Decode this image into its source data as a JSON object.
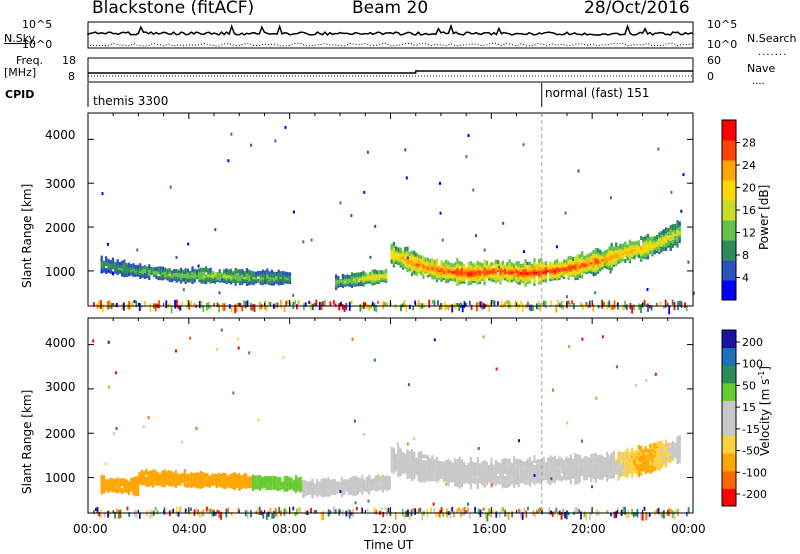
{
  "header": {
    "radar": "Blackstone (fitACF)",
    "beam": "Beam 20",
    "date": "28/Oct/2016"
  },
  "top_panels": {
    "nsky_label": "N.Sky",
    "nsearch_label": "N.Search",
    "freq_label": "Freq.",
    "freq_unit": "[MHz]",
    "nave_label": "Nave",
    "cpid_label": "CPID",
    "nsky_ticks": [
      "10^5",
      "10^0"
    ],
    "nsearch_ticks": [
      "10^5",
      "10^0"
    ],
    "freq_ticks": [
      "18",
      "8"
    ],
    "nave_ticks": [
      "60",
      "0"
    ],
    "cpid_segments": [
      {
        "start_hour": 0,
        "end_hour": 18,
        "label": "themis 3300"
      },
      {
        "start_hour": 18,
        "end_hour": 24,
        "label": "normal (fast) 151"
      }
    ]
  },
  "colors": {
    "power_scale": [
      "#0000ff",
      "#2a52be",
      "#2e8b57",
      "#66c14a",
      "#c8dc28",
      "#ffd700",
      "#ffa500",
      "#ff4500",
      "#ff0000"
    ],
    "velocity_scale": [
      "#ff0000",
      "#ff6600",
      "#ffa500",
      "#ffd040",
      "#c8c8c8",
      "#c8c8c8",
      "#66cc33",
      "#2e8b57",
      "#1e6fb5",
      "#1414a0"
    ],
    "nsky_line": "#000000"
  },
  "chart_data": [
    {
      "type": "heatmap",
      "title": "",
      "xlabel": "Time UT",
      "ylabel": "Slant Range [km]",
      "x_ticks": [
        "00:00",
        "04:00",
        "08:00",
        "12:00",
        "16:00",
        "20:00",
        "00:00"
      ],
      "y_ticks": [
        "1000",
        "2000",
        "3000",
        "4000"
      ],
      "xlim_hours": [
        0,
        24
      ],
      "ylim_km": [
        200,
        4600
      ],
      "colorbar": {
        "label": "Power [dB]",
        "ticks": [
          "4",
          "8",
          "12",
          "16",
          "20",
          "24",
          "28"
        ],
        "range": [
          0,
          32
        ]
      },
      "bands": [
        {
          "start_hour": 0.5,
          "end_hour": 8.0,
          "center_km": [
            1200,
            1050,
            950,
            950,
            900,
            900
          ],
          "half_width_km": 130,
          "power_db": [
            8,
            10,
            12,
            14,
            12,
            10
          ]
        },
        {
          "start_hour": 9.8,
          "end_hour": 11.8,
          "center_km": [
            800,
            850,
            900,
            950
          ],
          "half_width_km": 120,
          "power_db": [
            12,
            14,
            18,
            20
          ]
        },
        {
          "start_hour": 12.0,
          "end_hour": 23.5,
          "center_km": [
            1450,
            1200,
            1050,
            1000,
            1050,
            1000,
            1050,
            1150,
            1300,
            1500,
            1650,
            1950
          ],
          "half_width_km": 220,
          "power_db": [
            20,
            24,
            26,
            28,
            26,
            28,
            28,
            26,
            24,
            22,
            18,
            14
          ]
        }
      ],
      "ground_scatter_km": 300
    },
    {
      "type": "heatmap",
      "title": "",
      "xlabel": "Time UT",
      "ylabel": "Slant Range [km]",
      "x_ticks": [
        "00:00",
        "04:00",
        "08:00",
        "12:00",
        "16:00",
        "20:00",
        "00:00"
      ],
      "y_ticks": [
        "1000",
        "2000",
        "3000",
        "4000"
      ],
      "xlim_hours": [
        0,
        24
      ],
      "ylim_km": [
        200,
        4600
      ],
      "colorbar": {
        "label": "Velocity [m s^-1]",
        "ticks": [
          "-200",
          "-100",
          "-50",
          "-15",
          "15",
          "50",
          "100",
          "200"
        ],
        "range": [
          -250,
          250
        ]
      },
      "bands": [
        {
          "start_hour": 0.5,
          "end_hour": 2.0,
          "center_km": [
            900,
            850
          ],
          "half_width_km": 150,
          "velocity": [
            -60,
            -60
          ]
        },
        {
          "start_hour": 2.0,
          "end_hour": 6.5,
          "center_km": [
            1050,
            1000,
            950
          ],
          "half_width_km": 140,
          "velocity": [
            -40,
            -60,
            -60
          ]
        },
        {
          "start_hour": 6.5,
          "end_hour": 8.5,
          "center_km": [
            950,
            900
          ],
          "half_width_km": 130,
          "velocity": [
            40,
            60
          ]
        },
        {
          "start_hour": 8.5,
          "end_hour": 12.0,
          "center_km": [
            800,
            850,
            950
          ],
          "half_width_km": 150,
          "velocity": [
            0,
            0,
            0
          ]
        },
        {
          "start_hour": 12.0,
          "end_hour": 23.5,
          "center_km": [
            1450,
            1250,
            1150,
            1150,
            1200,
            1250,
            1300,
            1450,
            1700
          ],
          "half_width_km": 250,
          "velocity": [
            0,
            0,
            0,
            0,
            0,
            0,
            0,
            -40,
            0
          ]
        }
      ],
      "ground_scatter_km": 300
    }
  ]
}
